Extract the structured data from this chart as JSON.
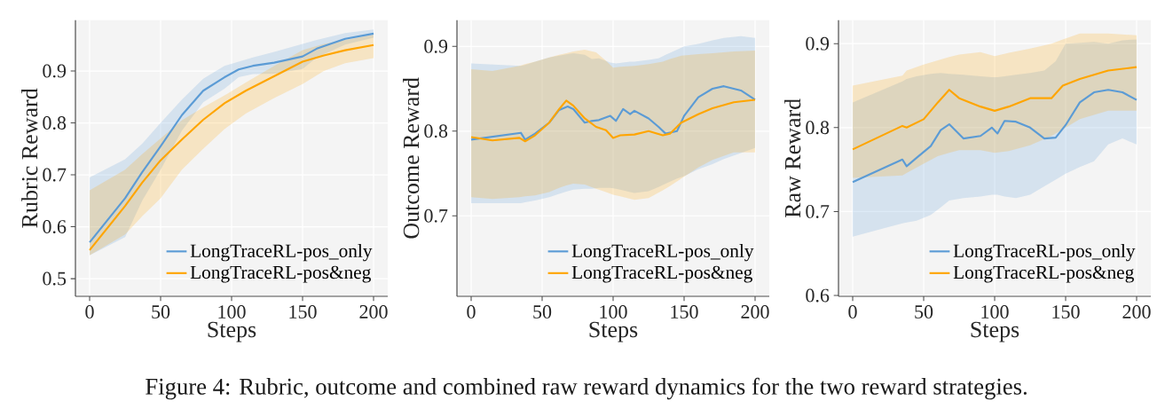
{
  "chart_data": [
    {
      "type": "line",
      "xlabel": "Steps",
      "ylabel": "Rubric Reward",
      "xlim": [
        -10,
        210
      ],
      "ylim": [
        0.466,
        0.998
      ],
      "xticks": [
        0,
        50,
        100,
        150,
        200
      ],
      "yticks": [
        0.5,
        0.6,
        0.7,
        0.8,
        0.9
      ],
      "grid": true,
      "legend": "bottom right",
      "line_style": "solid",
      "annotations": [
        "Figure 4: Rubric, outcome and combined raw reward dynamics for the two reward strategies."
      ],
      "series": [
        {
          "name": "LongTraceRL-pos_only",
          "color": "#5b9bd5",
          "x": [
            0,
            25,
            37,
            50,
            65,
            80,
            95,
            105,
            115,
            130,
            150,
            160,
            180,
            200
          ],
          "values": [
            0.57,
            0.655,
            0.705,
            0.755,
            0.815,
            0.862,
            0.888,
            0.903,
            0.91,
            0.916,
            0.928,
            0.943,
            0.962,
            0.972
          ],
          "upper": [
            0.695,
            0.73,
            0.76,
            0.8,
            0.845,
            0.885,
            0.91,
            0.918,
            0.926,
            0.937,
            0.952,
            0.96,
            0.973,
            0.98
          ],
          "lower": [
            0.545,
            0.58,
            0.65,
            0.71,
            0.785,
            0.84,
            0.866,
            0.888,
            0.894,
            0.895,
            0.904,
            0.926,
            0.951,
            0.964
          ]
        },
        {
          "name": "LongTraceRL-pos&neg",
          "color": "#ffa500",
          "x": [
            0,
            25,
            37,
            50,
            65,
            80,
            95,
            110,
            130,
            150,
            165,
            180,
            200
          ],
          "values": [
            0.555,
            0.64,
            0.685,
            0.728,
            0.768,
            0.806,
            0.838,
            0.862,
            0.89,
            0.918,
            0.93,
            0.94,
            0.95
          ],
          "upper": [
            0.67,
            0.71,
            0.74,
            0.77,
            0.805,
            0.83,
            0.853,
            0.878,
            0.91,
            0.94,
            0.952,
            0.96,
            0.97
          ],
          "lower": [
            0.545,
            0.585,
            0.62,
            0.655,
            0.71,
            0.75,
            0.788,
            0.818,
            0.848,
            0.875,
            0.9,
            0.915,
            0.925
          ]
        }
      ]
    },
    {
      "type": "line",
      "xlabel": "Steps",
      "ylabel": "Outcome Reward",
      "xlim": [
        -10,
        210
      ],
      "ylim": [
        0.605,
        0.931
      ],
      "xticks": [
        0,
        50,
        100,
        150,
        200
      ],
      "yticks": [
        0.7,
        0.8,
        0.9
      ],
      "grid": true,
      "legend": "bottom right",
      "line_style": "solid",
      "series": [
        {
          "name": "LongTraceRL-pos_only",
          "color": "#5b9bd5",
          "x": [
            0,
            35,
            38,
            45,
            55,
            62,
            68,
            72,
            80,
            85,
            90,
            98,
            102,
            107,
            112,
            115,
            125,
            132,
            137,
            145,
            150,
            160,
            170,
            178,
            190,
            200
          ],
          "values": [
            0.79,
            0.798,
            0.79,
            0.797,
            0.81,
            0.825,
            0.829,
            0.826,
            0.81,
            0.812,
            0.813,
            0.818,
            0.812,
            0.826,
            0.82,
            0.824,
            0.815,
            0.805,
            0.797,
            0.8,
            0.818,
            0.84,
            0.85,
            0.853,
            0.848,
            0.837
          ],
          "upper": [
            0.88,
            0.877,
            0.878,
            0.882,
            0.887,
            0.889,
            0.891,
            0.892,
            0.89,
            0.885,
            0.886,
            0.881,
            0.88,
            0.881,
            0.882,
            0.882,
            0.884,
            0.886,
            0.89,
            0.896,
            0.9,
            0.903,
            0.907,
            0.91,
            0.912,
            0.91
          ],
          "lower": [
            0.715,
            0.715,
            0.716,
            0.718,
            0.722,
            0.726,
            0.729,
            0.731,
            0.732,
            0.732,
            0.733,
            0.733,
            0.732,
            0.73,
            0.728,
            0.727,
            0.729,
            0.734,
            0.738,
            0.744,
            0.747,
            0.755,
            0.761,
            0.767,
            0.774,
            0.78
          ]
        },
        {
          "name": "LongTraceRL-pos&neg",
          "color": "#ffa500",
          "x": [
            0,
            15,
            34,
            38,
            45,
            55,
            62,
            67,
            72,
            80,
            88,
            95,
            100,
            105,
            115,
            125,
            135,
            140,
            148,
            160,
            170,
            185,
            200
          ],
          "values": [
            0.793,
            0.789,
            0.792,
            0.788,
            0.795,
            0.81,
            0.826,
            0.836,
            0.83,
            0.815,
            0.805,
            0.801,
            0.792,
            0.795,
            0.796,
            0.8,
            0.795,
            0.797,
            0.81,
            0.82,
            0.827,
            0.834,
            0.837
          ],
          "upper": [
            0.873,
            0.871,
            0.877,
            0.879,
            0.882,
            0.887,
            0.89,
            0.892,
            0.894,
            0.896,
            0.893,
            0.883,
            0.875,
            0.876,
            0.877,
            0.879,
            0.882,
            0.885,
            0.889,
            0.891,
            0.892,
            0.894,
            0.895
          ],
          "lower": [
            0.722,
            0.72,
            0.722,
            0.723,
            0.724,
            0.728,
            0.733,
            0.736,
            0.738,
            0.737,
            0.732,
            0.728,
            0.725,
            0.723,
            0.719,
            0.721,
            0.73,
            0.735,
            0.744,
            0.757,
            0.766,
            0.775,
            0.775
          ]
        }
      ]
    },
    {
      "type": "line",
      "xlabel": "Steps",
      "ylabel": "Raw Reward",
      "xlim": [
        -10,
        210
      ],
      "ylim": [
        0.599,
        0.928
      ],
      "xticks": [
        0,
        50,
        100,
        150,
        200
      ],
      "yticks": [
        0.6,
        0.7,
        0.8,
        0.9
      ],
      "grid": true,
      "legend": "bottom right",
      "line_style": "solid",
      "series": [
        {
          "name": "LongTraceRL-pos_only",
          "color": "#5b9bd5",
          "x": [
            0,
            35,
            38,
            45,
            55,
            62,
            68,
            78,
            90,
            98,
            102,
            107,
            115,
            125,
            135,
            143,
            150,
            160,
            170,
            180,
            190,
            200
          ],
          "values": [
            0.735,
            0.762,
            0.754,
            0.764,
            0.778,
            0.797,
            0.804,
            0.787,
            0.79,
            0.8,
            0.793,
            0.808,
            0.807,
            0.8,
            0.787,
            0.788,
            0.803,
            0.83,
            0.842,
            0.845,
            0.842,
            0.833
          ],
          "upper": [
            0.83,
            0.855,
            0.858,
            0.861,
            0.864,
            0.865,
            0.864,
            0.863,
            0.861,
            0.86,
            0.86,
            0.861,
            0.863,
            0.865,
            0.868,
            0.879,
            0.9,
            0.901,
            0.902,
            0.9,
            0.904,
            0.905
          ],
          "lower": [
            0.67,
            0.686,
            0.687,
            0.689,
            0.696,
            0.705,
            0.713,
            0.716,
            0.718,
            0.72,
            0.72,
            0.718,
            0.716,
            0.72,
            0.73,
            0.738,
            0.745,
            0.753,
            0.76,
            0.78,
            0.787,
            0.78
          ]
        },
        {
          "name": "LongTraceRL-pos&neg",
          "color": "#ffa500",
          "x": [
            0,
            35,
            38,
            50,
            60,
            68,
            75,
            90,
            100,
            110,
            125,
            140,
            148,
            160,
            180,
            200
          ],
          "values": [
            0.774,
            0.802,
            0.8,
            0.81,
            0.83,
            0.845,
            0.835,
            0.825,
            0.82,
            0.825,
            0.835,
            0.835,
            0.85,
            0.858,
            0.868,
            0.872
          ],
          "upper": [
            0.85,
            0.862,
            0.868,
            0.875,
            0.88,
            0.884,
            0.887,
            0.89,
            0.885,
            0.889,
            0.894,
            0.9,
            0.905,
            0.912,
            0.912,
            0.91
          ],
          "lower": [
            0.74,
            0.743,
            0.746,
            0.757,
            0.766,
            0.77,
            0.773,
            0.773,
            0.77,
            0.772,
            0.779,
            0.79,
            0.798,
            0.81,
            0.82,
            0.82
          ]
        }
      ]
    }
  ]
}
